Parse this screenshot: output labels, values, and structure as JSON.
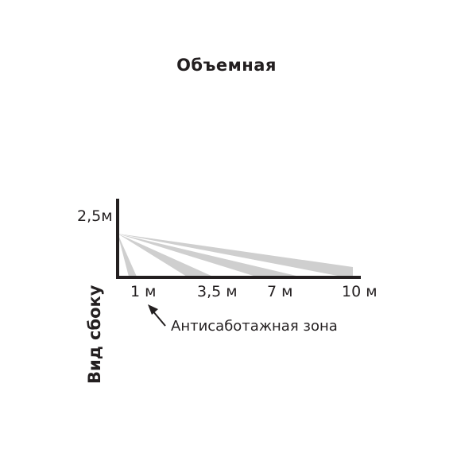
{
  "title": "Объемная",
  "height_label": "2,5м",
  "distance_labels": [
    "1 м",
    "3,5 м",
    "7 м",
    "10 м"
  ],
  "tamper_zone_label": "Антисаботажная зона",
  "side_view_label": "Вид сбоку",
  "colors": {
    "ink": "#231f20",
    "beam": "#cfcfcf"
  }
}
